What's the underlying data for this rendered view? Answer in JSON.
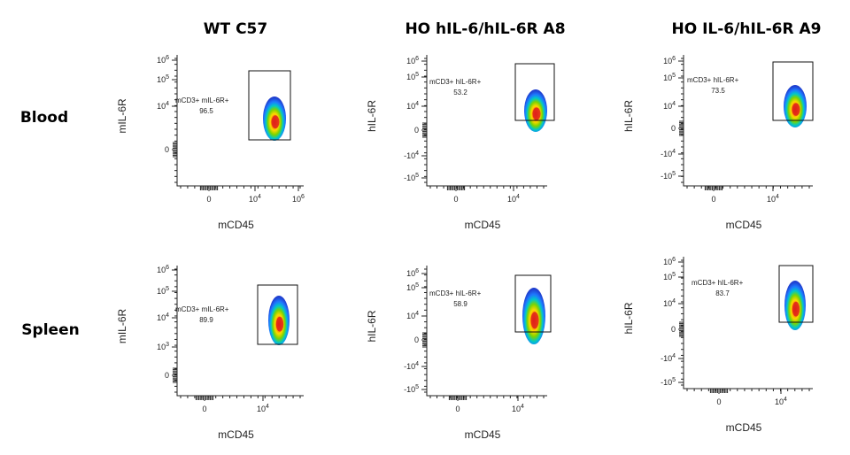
{
  "figure": {
    "columns": [
      "WT C57",
      "HO hIL-6/hIL-6R A8",
      "HO IL-6/hIL-6R A9"
    ],
    "rows": [
      "Blood",
      "Spleen"
    ]
  },
  "chart_data": [
    {
      "type": "scatter",
      "row": "Blood",
      "column": "WT C57",
      "xlabel": "mCD45",
      "ylabel": "mIL-6R",
      "x_ticks": [
        "0",
        "10^4",
        "10^6"
      ],
      "y_ticks": [
        "10^6",
        "10^5",
        "10^4",
        "0"
      ],
      "gate": {
        "label": "mCD3+ mIL-6R+",
        "percent": "96.5"
      },
      "population": {
        "x": "10^4.8",
        "y": "10^3.9"
      }
    },
    {
      "type": "scatter",
      "row": "Blood",
      "column": "HO hIL-6/hIL-6R A8",
      "xlabel": "mCD45",
      "ylabel": "hIL-6R",
      "x_ticks": [
        "0",
        "10^4"
      ],
      "y_ticks": [
        "10^6",
        "10^5",
        "10^4",
        "0",
        "-10^4",
        "-10^5"
      ],
      "gate": {
        "label": "mCD3+ hIL-6R+",
        "percent": "53.2"
      },
      "population": {
        "x": "10^4.8",
        "y": "0"
      }
    },
    {
      "type": "scatter",
      "row": "Blood",
      "column": "HO IL-6/hIL-6R A9",
      "xlabel": "mCD45",
      "ylabel": "hIL-6R",
      "x_ticks": [
        "0",
        "10^4"
      ],
      "y_ticks": [
        "10^6",
        "10^5",
        "10^4",
        "0",
        "-10^4",
        "-10^5"
      ],
      "gate": {
        "label": "mCD3+ hIL-6R+",
        "percent": "73.5"
      },
      "population": {
        "x": "10^4.8",
        "y": "10^3.5"
      }
    },
    {
      "type": "scatter",
      "row": "Spleen",
      "column": "WT C57",
      "xlabel": "mCD45",
      "ylabel": "mIL-6R",
      "x_ticks": [
        "0",
        "10^4"
      ],
      "y_ticks": [
        "10^6",
        "10^5",
        "10^4",
        "10^3",
        "0"
      ],
      "gate": {
        "label": "mCD3+ mIL-6R+",
        "percent": "89.9"
      },
      "population": {
        "x": "10^4.7",
        "y": "10^3.8"
      }
    },
    {
      "type": "scatter",
      "row": "Spleen",
      "column": "HO hIL-6/hIL-6R A8",
      "xlabel": "mCD45",
      "ylabel": "hIL-6R",
      "x_ticks": [
        "0",
        "10^4"
      ],
      "y_ticks": [
        "10^6",
        "10^5",
        "10^4",
        "0",
        "-10^4",
        "-10^5"
      ],
      "gate": {
        "label": "mCD3+ hIL-6R+",
        "percent": "58.9"
      },
      "population": {
        "x": "10^4.8",
        "y": "10^3"
      }
    },
    {
      "type": "scatter",
      "row": "Spleen",
      "column": "HO IL-6/hIL-6R A9",
      "xlabel": "mCD45",
      "ylabel": "hIL-6R",
      "x_ticks": [
        "0",
        "10^4"
      ],
      "y_ticks": [
        "10^6",
        "10^5",
        "10^4",
        "0",
        "-10^4",
        "-10^5"
      ],
      "gate": {
        "label": "mCD3+ hIL-6R+",
        "percent": "83.7"
      },
      "population": {
        "x": "10^4.8",
        "y": "10^4"
      }
    }
  ]
}
